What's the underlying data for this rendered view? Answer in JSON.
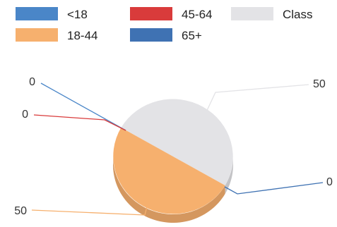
{
  "chart_data": {
    "type": "pie",
    "legend_position": "top",
    "slices": [
      {
        "label": "<18",
        "value": 0,
        "color": "#4a86c8"
      },
      {
        "label": "45-64",
        "value": 0,
        "color": "#d93b3b"
      },
      {
        "label": "Class",
        "value": 50,
        "color": "#e3e3e6"
      },
      {
        "label": "18-44",
        "value": 50,
        "color": "#f6b06e"
      },
      {
        "label": "65+",
        "value": 0,
        "color": "#3f72b3"
      }
    ],
    "legend": [
      "<18",
      "45-64",
      "Class",
      "18-44",
      "65+"
    ],
    "data_labels": [
      "0",
      "0",
      "50",
      "50",
      "0"
    ]
  }
}
